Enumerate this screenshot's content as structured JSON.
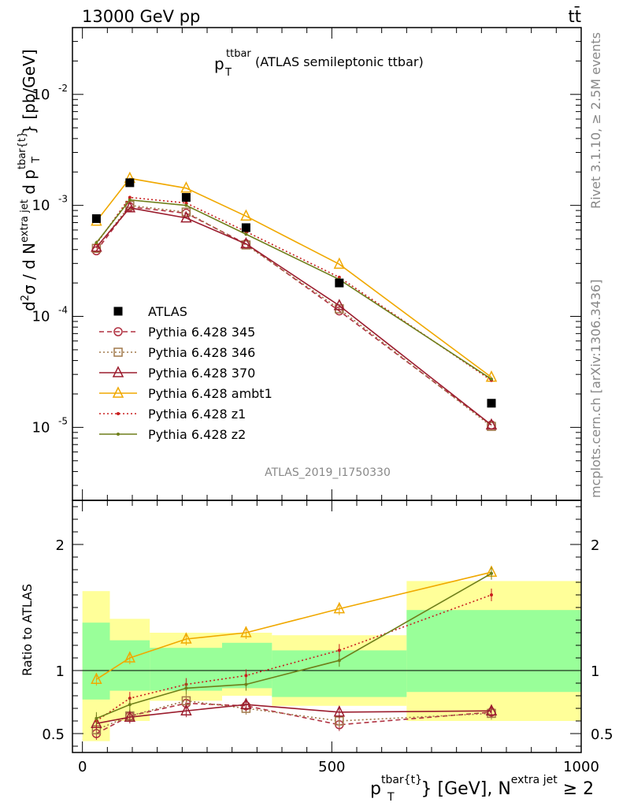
{
  "header": {
    "energy": "13000 GeV pp",
    "process": "tt̄"
  },
  "side": {
    "rivet": "Rivet 3.1.10, ≥ 2.5M events",
    "mcplots": "mcplots.cern.ch [arXiv:1306.3436]"
  },
  "plot": {
    "title_main": "p",
    "title_sub": "T",
    "title_sup": "ttbar",
    "title_rest": "(ATLAS semileptonic ttbar)",
    "analysis": "ATLAS_2019_I1750330"
  },
  "ylabel_main": "d²σ / d N^{extra jet} d p_T^{tbar{t}} [pb/GeV]",
  "ylabel_ratio": "Ratio to ATLAS",
  "xlabel": "p_T^{tbar{t}} [GeV], N^{extra jet} ≥ 2",
  "colors": {
    "data": "#000000",
    "p345": "#b03040",
    "p346": "#a0784a",
    "p370": "#9b1d2e",
    "ambt1": "#f0a800",
    "z1": "#c81e1e",
    "z2": "#6f7f1a",
    "band_inner": "#99ff99",
    "band_outer": "#ffff99"
  },
  "chart_data": {
    "type": "line",
    "x": [
      28,
      95,
      208,
      328,
      515,
      820
    ],
    "bin_edges": [
      0,
      55,
      135,
      280,
      380,
      650,
      1000
    ],
    "xlim": [
      -20,
      1000
    ],
    "main": {
      "yscale": "log",
      "ylim": [
        2.2e-06,
        0.04
      ],
      "yticks": [
        "10^{-5}",
        "10^{-4}",
        "10^{-3}",
        "10^{-2}"
      ],
      "data": {
        "name": "ATLAS",
        "values": [
          0.00076,
          0.0016,
          0.00118,
          0.00063,
          0.0002,
          1.65e-05
        ]
      },
      "series": [
        {
          "name": "Pythia 6.428 345",
          "key": "p345",
          "values": [
            0.00039,
            0.00097,
            0.00085,
            0.00045,
            0.000112,
            1.05e-05
          ]
        },
        {
          "name": "Pythia 6.428 346",
          "key": "p346",
          "values": [
            0.00041,
            0.001,
            0.00087,
            0.00044,
            0.000117,
            1.02e-05
          ]
        },
        {
          "name": "Pythia 6.428 370",
          "key": "p370",
          "values": [
            0.00042,
            0.00095,
            0.00077,
            0.00045,
            0.000125,
            1.05e-05
          ]
        },
        {
          "name": "Pythia 6.428 ambt1",
          "key": "ambt1",
          "values": [
            0.00072,
            0.00175,
            0.00143,
            0.0008,
            0.000295,
            2.83e-05
          ]
        },
        {
          "name": "Pythia 6.428 z1",
          "key": "z1",
          "values": [
            0.00045,
            0.00118,
            0.00105,
            0.00058,
            0.000225,
            2.65e-05
          ]
        },
        {
          "name": "Pythia 6.428 z2",
          "key": "z2",
          "values": [
            0.00046,
            0.00112,
            0.001,
            0.00055,
            0.000215,
            2.72e-05
          ]
        }
      ]
    },
    "ratio": {
      "ylim": [
        0.35,
        2.35
      ],
      "yticks": [
        "0.5",
        "1",
        "2"
      ],
      "band_inner": [
        [
          0.77,
          1.38
        ],
        [
          0.84,
          1.24
        ],
        [
          0.84,
          1.18
        ],
        [
          0.86,
          1.22
        ],
        [
          0.79,
          1.16
        ],
        [
          0.83,
          1.48
        ]
      ],
      "band_outer": [
        [
          0.44,
          1.63
        ],
        [
          0.6,
          1.41
        ],
        [
          0.76,
          1.3
        ],
        [
          0.8,
          1.3
        ],
        [
          0.72,
          1.28
        ],
        [
          0.6,
          1.71
        ]
      ],
      "series": [
        {
          "key": "p345",
          "values": [
            0.5,
            0.64,
            0.74,
            0.72,
            0.57,
            0.67
          ]
        },
        {
          "key": "p346",
          "values": [
            0.53,
            0.64,
            0.76,
            0.7,
            0.6,
            0.66
          ]
        },
        {
          "key": "p370",
          "values": [
            0.58,
            0.63,
            0.68,
            0.73,
            0.67,
            0.68
          ]
        },
        {
          "key": "ambt1",
          "values": [
            0.93,
            1.1,
            1.25,
            1.3,
            1.49,
            1.78
          ]
        },
        {
          "key": "z1",
          "values": [
            0.6,
            0.78,
            0.89,
            0.96,
            1.16,
            1.6
          ]
        },
        {
          "key": "z2",
          "values": [
            0.62,
            0.73,
            0.86,
            0.89,
            1.08,
            1.77
          ]
        }
      ]
    },
    "xticks": [
      "0",
      "500",
      "1000"
    ]
  }
}
